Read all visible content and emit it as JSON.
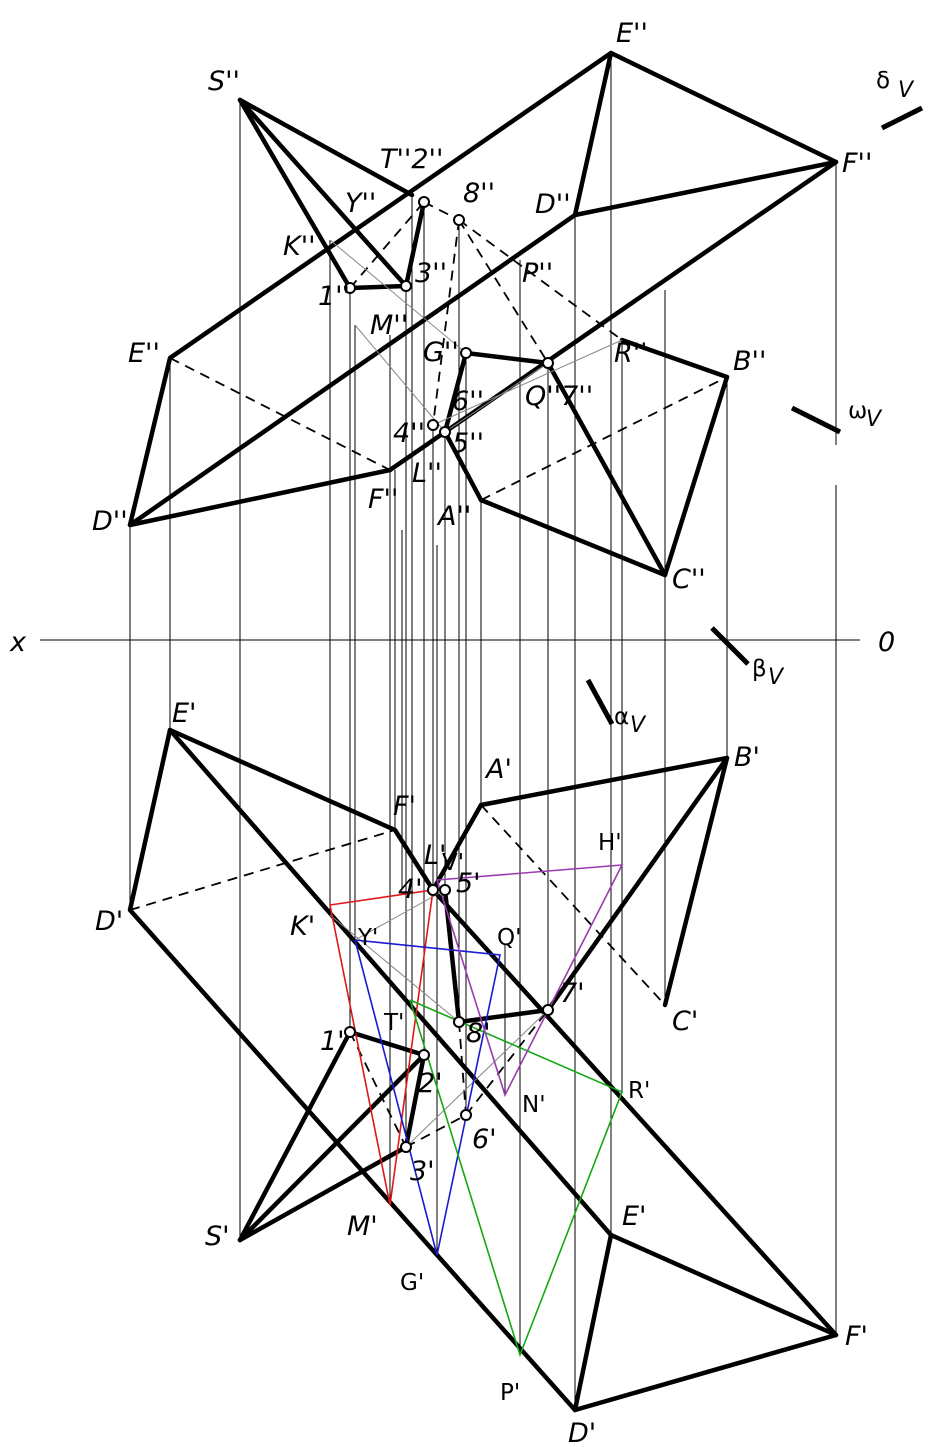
{
  "axis": {
    "x_label": "x",
    "o_label": "0"
  },
  "plane_traces": {
    "delta": "δ",
    "omega": "ω",
    "beta": "β",
    "alpha": "α",
    "subscript": "V"
  },
  "frontal_labels": {
    "S": "S''",
    "E_top": "E''",
    "F_right": "F''",
    "T2": "T''2''",
    "Y": "Y''",
    "p8": "8''",
    "D_mid": "D''",
    "K": "K''",
    "p1": "1''",
    "p3": "3''",
    "P": "P''",
    "M": "M''",
    "E_left": "E''",
    "G": "G''",
    "R": "R''",
    "B": "B''",
    "Q7": "Q''7''",
    "p6": "6''",
    "p4": "4''",
    "p5": "5''",
    "F_mid": "F''",
    "L": "L''",
    "D_left": "D''",
    "A": "A''",
    "C": "C''"
  },
  "horizontal_labels": {
    "E_left": "E'",
    "A": "A'",
    "B": "B'",
    "F": "F'",
    "H": "H'",
    "L": "L'",
    "V": "V'",
    "p4": "4'",
    "p5": "5'",
    "D_left": "D'",
    "K": "K'",
    "Y": "Y'",
    "Q": "Q'",
    "p7": "7'",
    "C": "C'",
    "T": "T'",
    "p8": "8'",
    "p1": "1'",
    "p2": "2'",
    "R": "R'",
    "N": "N'",
    "p6": "6'",
    "p3": "3'",
    "S": "S'",
    "M": "M'",
    "E_right": "E'",
    "G": "G'",
    "F_right": "F'",
    "P": "P'",
    "D_bottom": "D'"
  },
  "colors": {
    "red": "#e01818",
    "blue": "#1a1ad0",
    "green": "#13a813",
    "purple": "#9a3bb0"
  }
}
